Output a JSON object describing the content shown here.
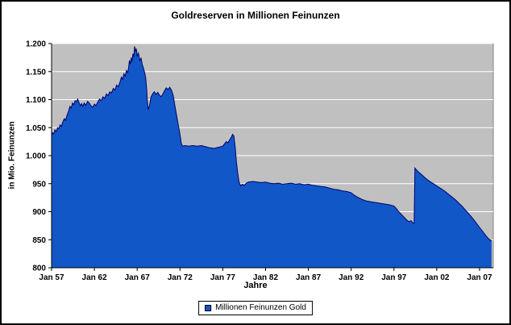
{
  "window": {
    "background": "#ffffff",
    "border_color": "#000000"
  },
  "chart_data": {
    "type": "area",
    "title": "Goldreserven in Millionen Feinunzen",
    "xlabel": "Jahre",
    "ylabel": "in Mio. Feinunzen",
    "legend": [
      "Millionen Feinunzen Gold"
    ],
    "legend_position": "bottom",
    "series_color": "#1257c8",
    "series_border_color": "#00006a",
    "plot_background": "#c0c0c0",
    "gridline_color": "#ffffff",
    "axis_color": "#000000",
    "grid": "horizontal",
    "xlim": [
      1957,
      2008.6
    ],
    "ylim": [
      800,
      1200
    ],
    "y_ticks": [
      {
        "value": 800,
        "label": "800"
      },
      {
        "value": 850,
        "label": "850"
      },
      {
        "value": 900,
        "label": "900"
      },
      {
        "value": 950,
        "label": "950"
      },
      {
        "value": 1000,
        "label": "1.000"
      },
      {
        "value": 1050,
        "label": "1.050"
      },
      {
        "value": 1100,
        "label": "1.100"
      },
      {
        "value": 1150,
        "label": "1.150"
      },
      {
        "value": 1200,
        "label": "1.200"
      }
    ],
    "x_ticks": [
      {
        "value": 1957,
        "label": "Jan 57"
      },
      {
        "value": 1962,
        "label": "Jan 62"
      },
      {
        "value": 1967,
        "label": "Jan 67"
      },
      {
        "value": 1972,
        "label": "Jan 72"
      },
      {
        "value": 1977,
        "label": "Jan 77"
      },
      {
        "value": 1982,
        "label": "Jan 82"
      },
      {
        "value": 1987,
        "label": "Jan 87"
      },
      {
        "value": 1992,
        "label": "Jan 92"
      },
      {
        "value": 1997,
        "label": "Jan 97"
      },
      {
        "value": 2002,
        "label": "Jan 02"
      },
      {
        "value": 2007,
        "label": "Jan 07"
      }
    ],
    "points": [
      [
        1957.0,
        1036
      ],
      [
        1957.1,
        1041
      ],
      [
        1957.25,
        1039
      ],
      [
        1957.4,
        1046
      ],
      [
        1957.55,
        1043
      ],
      [
        1957.7,
        1050
      ],
      [
        1957.85,
        1048
      ],
      [
        1958.0,
        1055
      ],
      [
        1958.15,
        1052
      ],
      [
        1958.3,
        1060
      ],
      [
        1958.5,
        1066
      ],
      [
        1958.65,
        1063
      ],
      [
        1958.8,
        1072
      ],
      [
        1959.0,
        1080
      ],
      [
        1959.15,
        1088
      ],
      [
        1959.3,
        1085
      ],
      [
        1959.45,
        1094
      ],
      [
        1959.6,
        1091
      ],
      [
        1959.75,
        1098
      ],
      [
        1959.9,
        1096
      ],
      [
        1960.05,
        1101
      ],
      [
        1960.2,
        1095
      ],
      [
        1960.35,
        1089
      ],
      [
        1960.5,
        1093
      ],
      [
        1960.65,
        1088
      ],
      [
        1960.8,
        1094
      ],
      [
        1961.0,
        1090
      ],
      [
        1961.2,
        1097
      ],
      [
        1961.4,
        1094
      ],
      [
        1961.6,
        1089
      ],
      [
        1961.8,
        1086
      ],
      [
        1962.0,
        1092
      ],
      [
        1962.2,
        1089
      ],
      [
        1962.4,
        1096
      ],
      [
        1962.6,
        1101
      ],
      [
        1962.8,
        1098
      ],
      [
        1963.0,
        1105
      ],
      [
        1963.2,
        1102
      ],
      [
        1963.4,
        1110
      ],
      [
        1963.6,
        1107
      ],
      [
        1963.8,
        1114
      ],
      [
        1964.0,
        1112
      ],
      [
        1964.2,
        1120
      ],
      [
        1964.4,
        1117
      ],
      [
        1964.6,
        1126
      ],
      [
        1964.8,
        1123
      ],
      [
        1965.0,
        1132
      ],
      [
        1965.15,
        1140
      ],
      [
        1965.3,
        1136
      ],
      [
        1965.45,
        1146
      ],
      [
        1965.6,
        1142
      ],
      [
        1965.75,
        1152
      ],
      [
        1965.9,
        1148
      ],
      [
        1966.0,
        1158
      ],
      [
        1966.1,
        1170
      ],
      [
        1966.2,
        1163
      ],
      [
        1966.3,
        1175
      ],
      [
        1966.4,
        1168
      ],
      [
        1966.5,
        1182
      ],
      [
        1966.6,
        1176
      ],
      [
        1966.7,
        1195
      ],
      [
        1966.8,
        1186
      ],
      [
        1966.9,
        1191
      ],
      [
        1967.0,
        1178
      ],
      [
        1967.15,
        1183
      ],
      [
        1967.3,
        1170
      ],
      [
        1967.45,
        1174
      ],
      [
        1967.6,
        1162
      ],
      [
        1967.75,
        1155
      ],
      [
        1967.9,
        1146
      ],
      [
        1968.0,
        1138
      ],
      [
        1968.1,
        1120
      ],
      [
        1968.2,
        1096
      ],
      [
        1968.3,
        1082
      ],
      [
        1968.45,
        1090
      ],
      [
        1968.6,
        1104
      ],
      [
        1968.8,
        1110
      ],
      [
        1969.0,
        1114
      ],
      [
        1969.2,
        1109
      ],
      [
        1969.4,
        1113
      ],
      [
        1969.6,
        1108
      ],
      [
        1969.8,
        1105
      ],
      [
        1970.0,
        1110
      ],
      [
        1970.2,
        1116
      ],
      [
        1970.4,
        1121
      ],
      [
        1970.6,
        1118
      ],
      [
        1970.8,
        1122
      ],
      [
        1971.0,
        1117
      ],
      [
        1971.2,
        1108
      ],
      [
        1971.4,
        1090
      ],
      [
        1971.6,
        1072
      ],
      [
        1971.8,
        1055
      ],
      [
        1972.0,
        1038
      ],
      [
        1972.15,
        1022
      ],
      [
        1972.3,
        1017
      ],
      [
        1972.6,
        1018
      ],
      [
        1973.0,
        1017
      ],
      [
        1973.5,
        1018
      ],
      [
        1974.0,
        1017
      ],
      [
        1974.5,
        1018
      ],
      [
        1975.0,
        1016
      ],
      [
        1975.5,
        1014
      ],
      [
        1976.0,
        1013
      ],
      [
        1976.5,
        1015
      ],
      [
        1977.0,
        1017
      ],
      [
        1977.2,
        1021
      ],
      [
        1977.4,
        1025
      ],
      [
        1977.6,
        1023
      ],
      [
        1977.8,
        1028
      ],
      [
        1978.0,
        1033
      ],
      [
        1978.15,
        1038
      ],
      [
        1978.3,
        1035
      ],
      [
        1978.45,
        1015
      ],
      [
        1978.6,
        988
      ],
      [
        1978.75,
        968
      ],
      [
        1978.9,
        953
      ],
      [
        1979.1,
        946
      ],
      [
        1979.3,
        949
      ],
      [
        1979.5,
        947
      ],
      [
        1979.75,
        951
      ],
      [
        1980.0,
        953
      ],
      [
        1980.5,
        954
      ],
      [
        1981.0,
        953
      ],
      [
        1981.5,
        952
      ],
      [
        1982.0,
        953
      ],
      [
        1982.5,
        951
      ],
      [
        1983.0,
        950
      ],
      [
        1983.5,
        951
      ],
      [
        1984.0,
        949
      ],
      [
        1984.5,
        950
      ],
      [
        1985.0,
        951
      ],
      [
        1985.5,
        949
      ],
      [
        1986.0,
        950
      ],
      [
        1986.5,
        948
      ],
      [
        1987.0,
        949
      ],
      [
        1987.5,
        947
      ],
      [
        1988.0,
        946
      ],
      [
        1988.5,
        945
      ],
      [
        1989.0,
        944
      ],
      [
        1989.5,
        942
      ],
      [
        1990.0,
        940
      ],
      [
        1990.5,
        939
      ],
      [
        1991.0,
        937
      ],
      [
        1991.5,
        936
      ],
      [
        1992.0,
        934
      ],
      [
        1992.3,
        930
      ],
      [
        1992.6,
        927
      ],
      [
        1993.0,
        924
      ],
      [
        1993.4,
        921
      ],
      [
        1993.8,
        919
      ],
      [
        1994.2,
        918
      ],
      [
        1994.6,
        917
      ],
      [
        1995.0,
        916
      ],
      [
        1995.4,
        915
      ],
      [
        1995.8,
        914
      ],
      [
        1996.2,
        913
      ],
      [
        1996.6,
        912
      ],
      [
        1997.0,
        910
      ],
      [
        1997.25,
        906
      ],
      [
        1997.5,
        901
      ],
      [
        1997.75,
        897
      ],
      [
        1998.0,
        893
      ],
      [
        1998.25,
        889
      ],
      [
        1998.5,
        885
      ],
      [
        1998.75,
        882
      ],
      [
        1999.0,
        884
      ],
      [
        1999.2,
        880
      ],
      [
        1999.35,
        879
      ],
      [
        1999.45,
        978
      ],
      [
        1999.6,
        975
      ],
      [
        1999.8,
        972
      ],
      [
        2000.0,
        969
      ],
      [
        2000.3,
        965
      ],
      [
        2000.6,
        961
      ],
      [
        2001.0,
        956
      ],
      [
        2001.4,
        952
      ],
      [
        2001.8,
        948
      ],
      [
        2002.2,
        944
      ],
      [
        2002.6,
        940
      ],
      [
        2003.0,
        936
      ],
      [
        2003.4,
        931
      ],
      [
        2003.8,
        926
      ],
      [
        2004.2,
        921
      ],
      [
        2004.6,
        915
      ],
      [
        2005.0,
        909
      ],
      [
        2005.4,
        902
      ],
      [
        2005.8,
        895
      ],
      [
        2006.2,
        888
      ],
      [
        2006.6,
        880
      ],
      [
        2007.0,
        872
      ],
      [
        2007.4,
        864
      ],
      [
        2007.8,
        856
      ],
      [
        2008.1,
        851
      ],
      [
        2008.4,
        848
      ]
    ]
  }
}
